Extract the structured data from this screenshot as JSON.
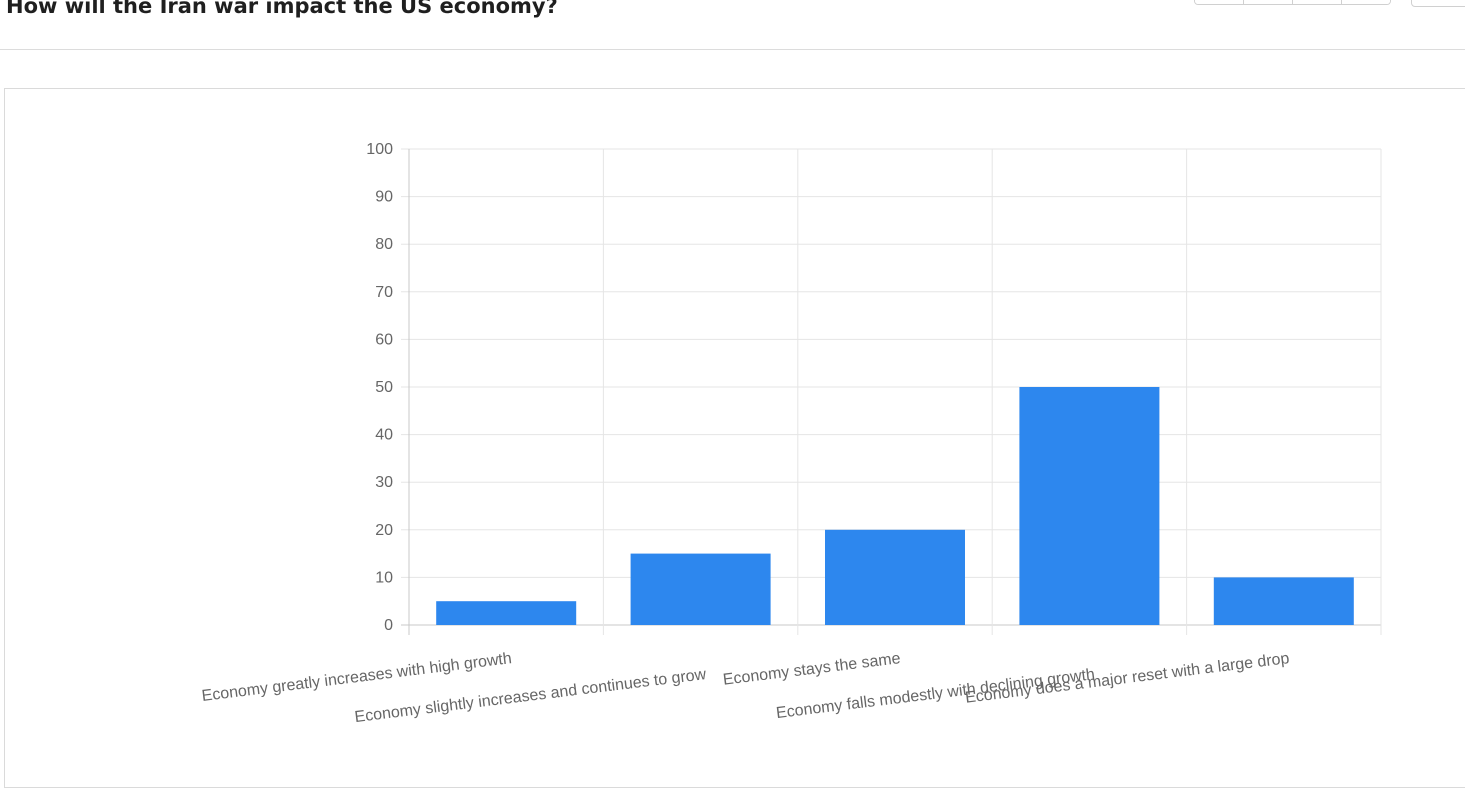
{
  "page": {
    "title": "How will the Iran war impact the US economy?"
  },
  "colors": {
    "bar": "#2d87ee",
    "grid": "#e5e5e5",
    "tick_text": "#666666"
  },
  "chart_data": {
    "type": "bar",
    "title": "",
    "xlabel": "",
    "ylabel": "",
    "categories": [
      "Economy greatly increases with high growth",
      "Economy slightly increases and continues to grow",
      "Economy stays the same",
      "Economy falls modestly with declining growth",
      "Economy does a major reset with a large drop"
    ],
    "values": [
      5,
      15,
      20,
      50,
      10
    ],
    "ylim": [
      0,
      100
    ],
    "yticks": [
      0,
      10,
      20,
      30,
      40,
      50,
      60,
      70,
      80,
      90,
      100
    ],
    "grid": true,
    "legend": "none"
  }
}
